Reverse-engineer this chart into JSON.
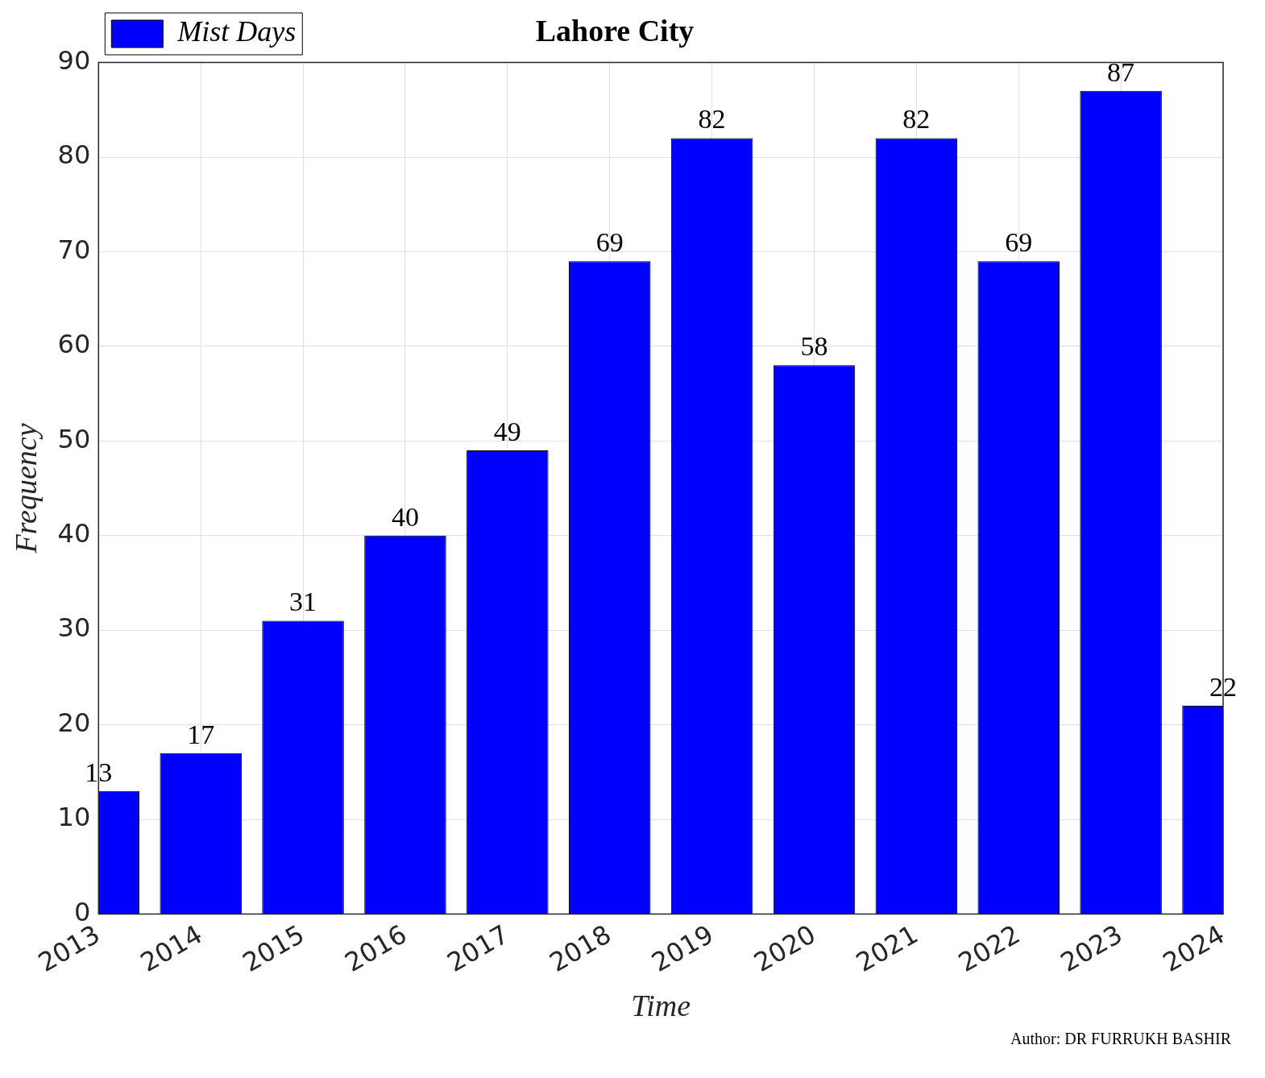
{
  "chart_data": {
    "type": "bar",
    "title": "Lahore City",
    "xlabel": "Time",
    "ylabel": "Frequency",
    "categories": [
      "2013",
      "2014",
      "2015",
      "2016",
      "2017",
      "2018",
      "2019",
      "2020",
      "2021",
      "2022",
      "2023",
      "2024"
    ],
    "series": [
      {
        "name": "Mist Days",
        "color": "#0000ff",
        "values": [
          13,
          17,
          31,
          40,
          49,
          69,
          82,
          58,
          82,
          69,
          87,
          22
        ]
      }
    ],
    "ylim": [
      0,
      90
    ],
    "yticks": [
      0,
      10,
      20,
      30,
      40,
      50,
      60,
      70,
      80,
      90
    ],
    "grid": true,
    "legend": "top left",
    "data_labels": true,
    "annotations": [
      "Author: DR FURRUKH BASHIR"
    ]
  }
}
